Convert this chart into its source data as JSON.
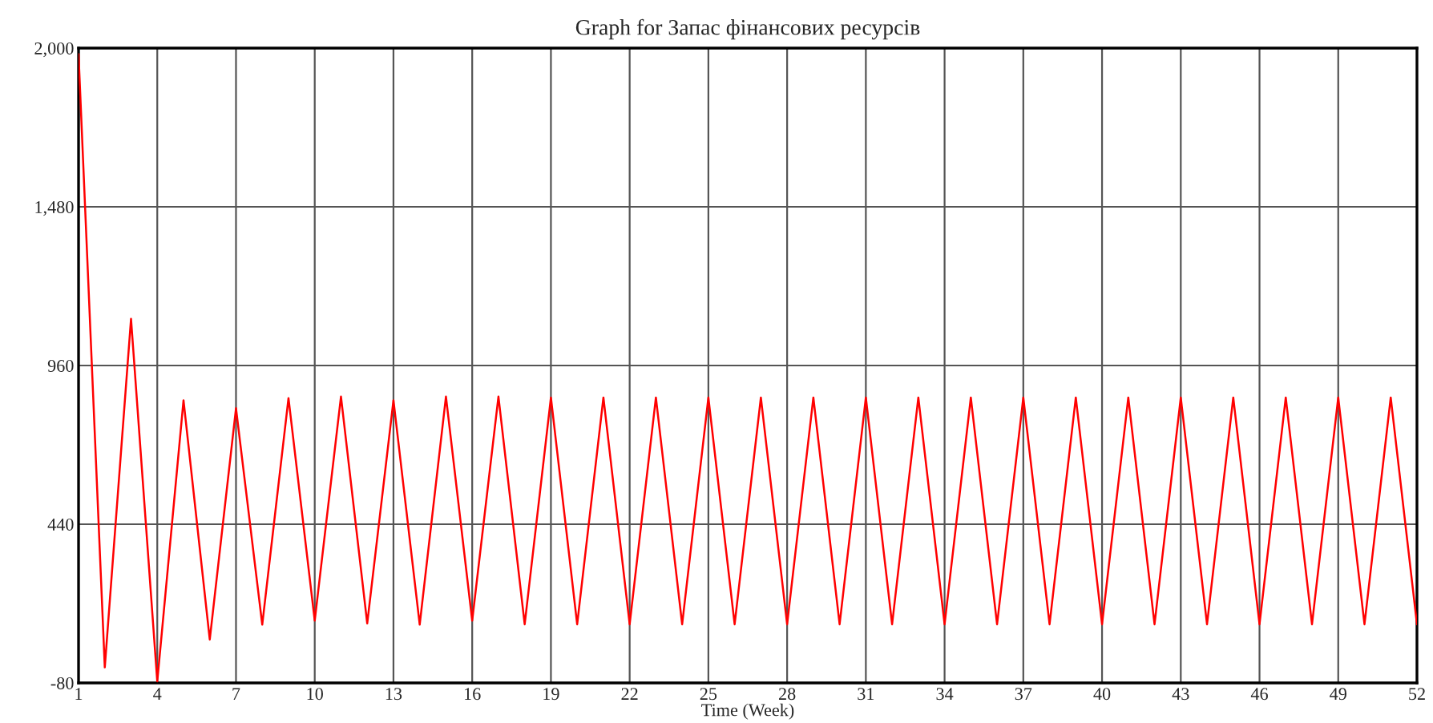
{
  "chart_data": {
    "type": "line",
    "title": "Graph for Запас фінансових ресурсів",
    "xlabel": "Time (Week)",
    "x": [
      1,
      2,
      3,
      4,
      5,
      6,
      7,
      8,
      9,
      10,
      11,
      12,
      13,
      14,
      15,
      16,
      17,
      18,
      19,
      20,
      21,
      22,
      23,
      24,
      25,
      26,
      27,
      28,
      29,
      30,
      31,
      32,
      33,
      34,
      35,
      36,
      37,
      38,
      39,
      40,
      41,
      42,
      43,
      44,
      45,
      46,
      47,
      48,
      49,
      50,
      51,
      52
    ],
    "series": [
      {
        "color": "#ff0000",
        "values": [
          1980,
          -29,
          1113,
          -75,
          846,
          62,
          820,
          111,
          853,
          124,
          858,
          115,
          846,
          111,
          858,
          124,
          858,
          112,
          855,
          112,
          855,
          112,
          855,
          112,
          855,
          112,
          855,
          112,
          855,
          112,
          855,
          112,
          855,
          112,
          855,
          112,
          855,
          112,
          855,
          112,
          855,
          112,
          855,
          112,
          855,
          112,
          855,
          112,
          855,
          112,
          855,
          112
        ]
      }
    ],
    "xlim": [
      1,
      52
    ],
    "xticks": [
      1,
      4,
      7,
      10,
      13,
      16,
      19,
      22,
      25,
      28,
      31,
      34,
      37,
      40,
      43,
      46,
      49,
      52
    ],
    "ylim": [
      -80,
      2000
    ],
    "yticks": [
      {
        "value": -80,
        "label": "-80"
      },
      {
        "value": 440,
        "label": "440"
      },
      {
        "value": 960,
        "label": "960"
      },
      {
        "value": 1480,
        "label": "1,480"
      },
      {
        "value": 2000,
        "label": "2,000"
      }
    ],
    "grid": true,
    "legend": false,
    "marker": "none",
    "line_style": "solid"
  }
}
